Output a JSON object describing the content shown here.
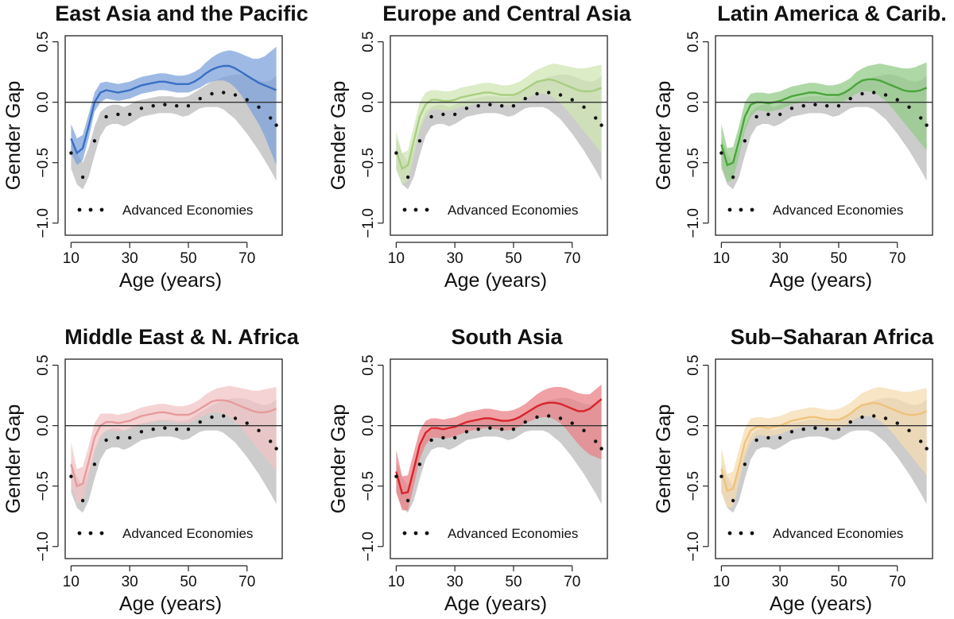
{
  "chart_data": {
    "type": "line",
    "xlabel": "Age (years)",
    "ylabel": "Gender Gap",
    "xlim": [
      8,
      82
    ],
    "ylim": [
      -1.1,
      0.55
    ],
    "xticks": [
      10,
      30,
      50,
      70
    ],
    "yticks": [
      -1.0,
      -0.5,
      0.0,
      0.5
    ],
    "xtick_labels": [
      "10",
      "30",
      "50",
      "70"
    ],
    "ytick_labels": [
      "−1.0",
      "−0.5",
      "0.0",
      "0.5"
    ],
    "reference_line_y": 0.0,
    "legend_label": "Advanced Economies",
    "legend_position": "bottom",
    "baseline": {
      "name": "Advanced Economies",
      "x": [
        10,
        12,
        14,
        16,
        18,
        20,
        22,
        24,
        26,
        28,
        30,
        32,
        34,
        36,
        38,
        40,
        42,
        44,
        46,
        48,
        50,
        52,
        54,
        56,
        58,
        60,
        62,
        64,
        66,
        68,
        70,
        72,
        74,
        76,
        78,
        80
      ],
      "y": [
        -0.42,
        -0.55,
        -0.62,
        -0.5,
        -0.32,
        -0.18,
        -0.12,
        -0.1,
        -0.1,
        -0.12,
        -0.1,
        -0.07,
        -0.05,
        -0.04,
        -0.03,
        -0.02,
        -0.02,
        -0.02,
        -0.03,
        -0.04,
        -0.03,
        0.0,
        0.03,
        0.05,
        0.07,
        0.08,
        0.08,
        0.07,
        0.06,
        0.04,
        0.02,
        -0.01,
        -0.04,
        -0.08,
        -0.13,
        -0.19
      ],
      "lower": [
        -0.55,
        -0.68,
        -0.72,
        -0.62,
        -0.44,
        -0.28,
        -0.2,
        -0.18,
        -0.18,
        -0.2,
        -0.18,
        -0.15,
        -0.12,
        -0.11,
        -0.1,
        -0.09,
        -0.09,
        -0.09,
        -0.1,
        -0.12,
        -0.11,
        -0.08,
        -0.05,
        -0.04,
        -0.04,
        -0.04,
        -0.06,
        -0.1,
        -0.14,
        -0.2,
        -0.26,
        -0.33,
        -0.4,
        -0.48,
        -0.56,
        -0.65
      ],
      "upper": [
        -0.3,
        -0.42,
        -0.5,
        -0.38,
        -0.2,
        -0.08,
        -0.04,
        -0.02,
        -0.02,
        -0.04,
        -0.02,
        0.01,
        0.02,
        0.03,
        0.04,
        0.05,
        0.05,
        0.05,
        0.04,
        0.04,
        0.05,
        0.08,
        0.11,
        0.14,
        0.17,
        0.19,
        0.21,
        0.22,
        0.23,
        0.23,
        0.22,
        0.2,
        0.18,
        0.17,
        0.18,
        0.22
      ]
    },
    "panels": [
      {
        "title": "East Asia and the Pacific",
        "color": "#3a6fc4",
        "band_color": "#7ea3db",
        "x": [
          10,
          12,
          14,
          16,
          18,
          20,
          22,
          24,
          26,
          28,
          30,
          32,
          34,
          36,
          38,
          40,
          42,
          44,
          46,
          48,
          50,
          52,
          54,
          56,
          58,
          60,
          62,
          64,
          66,
          68,
          70,
          72,
          74,
          76,
          78,
          80
        ],
        "y": [
          -0.3,
          -0.42,
          -0.38,
          -0.2,
          0.0,
          0.08,
          0.1,
          0.09,
          0.08,
          0.09,
          0.1,
          0.12,
          0.14,
          0.15,
          0.16,
          0.17,
          0.17,
          0.16,
          0.15,
          0.15,
          0.15,
          0.17,
          0.2,
          0.24,
          0.27,
          0.29,
          0.3,
          0.3,
          0.28,
          0.25,
          0.22,
          0.19,
          0.16,
          0.14,
          0.12,
          0.1
        ],
        "lower": [
          -0.42,
          -0.52,
          -0.48,
          -0.3,
          -0.08,
          0.0,
          0.03,
          0.02,
          0.01,
          0.02,
          0.03,
          0.05,
          0.07,
          0.08,
          0.09,
          0.1,
          0.1,
          0.09,
          0.08,
          0.08,
          0.08,
          0.1,
          0.12,
          0.15,
          0.17,
          0.18,
          0.18,
          0.16,
          0.12,
          0.06,
          -0.02,
          -0.1,
          -0.18,
          -0.28,
          -0.4,
          -0.52
        ],
        "upper": [
          -0.18,
          -0.3,
          -0.27,
          -0.1,
          0.08,
          0.16,
          0.17,
          0.16,
          0.15,
          0.16,
          0.17,
          0.19,
          0.21,
          0.22,
          0.23,
          0.24,
          0.24,
          0.23,
          0.22,
          0.22,
          0.23,
          0.25,
          0.28,
          0.33,
          0.37,
          0.4,
          0.42,
          0.43,
          0.42,
          0.4,
          0.38,
          0.36,
          0.36,
          0.38,
          0.42,
          0.46
        ]
      },
      {
        "title": "Europe and Central Asia",
        "color": "#a9cf7f",
        "band_color": "#cfe6b4",
        "x": [
          10,
          12,
          14,
          16,
          18,
          20,
          22,
          24,
          26,
          28,
          30,
          32,
          34,
          36,
          38,
          40,
          42,
          44,
          46,
          48,
          50,
          52,
          54,
          56,
          58,
          60,
          62,
          64,
          66,
          68,
          70,
          72,
          74,
          76,
          78,
          80
        ],
        "y": [
          -0.4,
          -0.55,
          -0.52,
          -0.32,
          -0.12,
          -0.02,
          0.02,
          0.02,
          0.01,
          0.01,
          0.02,
          0.04,
          0.05,
          0.06,
          0.07,
          0.08,
          0.08,
          0.07,
          0.06,
          0.06,
          0.06,
          0.08,
          0.11,
          0.14,
          0.17,
          0.18,
          0.19,
          0.18,
          0.16,
          0.14,
          0.12,
          0.1,
          0.09,
          0.09,
          0.1,
          0.12
        ],
        "lower": [
          -0.56,
          -0.68,
          -0.65,
          -0.45,
          -0.24,
          -0.12,
          -0.06,
          -0.06,
          -0.07,
          -0.07,
          -0.06,
          -0.04,
          -0.03,
          -0.02,
          -0.01,
          0.0,
          0.0,
          -0.01,
          -0.02,
          -0.02,
          -0.02,
          0.0,
          0.03,
          0.05,
          0.07,
          0.07,
          0.06,
          0.03,
          -0.01,
          -0.06,
          -0.12,
          -0.18,
          -0.24,
          -0.3,
          -0.36,
          -0.42
        ],
        "upper": [
          -0.24,
          -0.42,
          -0.4,
          -0.2,
          0.0,
          0.08,
          0.1,
          0.1,
          0.09,
          0.09,
          0.1,
          0.12,
          0.13,
          0.14,
          0.15,
          0.16,
          0.16,
          0.15,
          0.14,
          0.14,
          0.15,
          0.17,
          0.2,
          0.24,
          0.27,
          0.29,
          0.31,
          0.32,
          0.31,
          0.3,
          0.29,
          0.28,
          0.28,
          0.29,
          0.3,
          0.31
        ]
      },
      {
        "title": "Latin America & Carib.",
        "color": "#4aa53a",
        "band_color": "#93cb88",
        "x": [
          10,
          12,
          14,
          16,
          18,
          20,
          22,
          24,
          26,
          28,
          30,
          32,
          34,
          36,
          38,
          40,
          42,
          44,
          46,
          48,
          50,
          52,
          54,
          56,
          58,
          60,
          62,
          64,
          66,
          68,
          70,
          72,
          74,
          76,
          78,
          80
        ],
        "y": [
          -0.35,
          -0.52,
          -0.5,
          -0.32,
          -0.12,
          -0.02,
          0.0,
          0.0,
          -0.01,
          0.0,
          0.01,
          0.03,
          0.05,
          0.06,
          0.07,
          0.08,
          0.08,
          0.07,
          0.06,
          0.06,
          0.06,
          0.08,
          0.11,
          0.15,
          0.18,
          0.19,
          0.19,
          0.18,
          0.16,
          0.14,
          0.12,
          0.1,
          0.09,
          0.09,
          0.1,
          0.12
        ],
        "lower": [
          -0.52,
          -0.66,
          -0.64,
          -0.45,
          -0.24,
          -0.12,
          -0.07,
          -0.07,
          -0.08,
          -0.07,
          -0.06,
          -0.04,
          -0.02,
          -0.01,
          0.0,
          0.01,
          0.01,
          0.0,
          -0.01,
          -0.01,
          -0.01,
          0.01,
          0.04,
          0.07,
          0.09,
          0.09,
          0.08,
          0.05,
          0.01,
          -0.04,
          -0.1,
          -0.16,
          -0.22,
          -0.28,
          -0.34,
          -0.4
        ],
        "upper": [
          -0.18,
          -0.38,
          -0.37,
          -0.2,
          0.0,
          0.07,
          0.08,
          0.08,
          0.07,
          0.08,
          0.09,
          0.11,
          0.13,
          0.14,
          0.15,
          0.16,
          0.16,
          0.15,
          0.14,
          0.14,
          0.15,
          0.17,
          0.2,
          0.25,
          0.28,
          0.3,
          0.31,
          0.32,
          0.31,
          0.3,
          0.29,
          0.28,
          0.28,
          0.29,
          0.31,
          0.33
        ]
      },
      {
        "title": "Middle East & N. Africa",
        "color": "#e79a9c",
        "band_color": "#f1c4c5",
        "x": [
          10,
          12,
          14,
          16,
          18,
          20,
          22,
          24,
          26,
          28,
          30,
          32,
          34,
          36,
          38,
          40,
          42,
          44,
          46,
          48,
          50,
          52,
          54,
          56,
          58,
          60,
          62,
          64,
          66,
          68,
          70,
          72,
          74,
          76,
          78,
          80
        ],
        "y": [
          -0.32,
          -0.5,
          -0.48,
          -0.3,
          -0.1,
          0.0,
          0.03,
          0.03,
          0.02,
          0.03,
          0.04,
          0.06,
          0.08,
          0.09,
          0.1,
          0.11,
          0.11,
          0.1,
          0.09,
          0.09,
          0.09,
          0.11,
          0.14,
          0.17,
          0.2,
          0.21,
          0.21,
          0.2,
          0.18,
          0.16,
          0.14,
          0.12,
          0.11,
          0.11,
          0.12,
          0.14
        ],
        "lower": [
          -0.5,
          -0.64,
          -0.62,
          -0.43,
          -0.22,
          -0.1,
          -0.04,
          -0.04,
          -0.05,
          -0.04,
          -0.03,
          -0.01,
          0.01,
          0.02,
          0.03,
          0.04,
          0.04,
          0.03,
          0.02,
          0.02,
          0.02,
          0.04,
          0.07,
          0.09,
          0.11,
          0.11,
          0.1,
          0.07,
          0.03,
          -0.02,
          -0.08,
          -0.14,
          -0.2,
          -0.26,
          -0.32,
          -0.38
        ],
        "upper": [
          -0.14,
          -0.36,
          -0.34,
          -0.17,
          0.02,
          0.1,
          0.1,
          0.1,
          0.09,
          0.1,
          0.11,
          0.13,
          0.15,
          0.16,
          0.17,
          0.18,
          0.18,
          0.17,
          0.16,
          0.16,
          0.17,
          0.19,
          0.22,
          0.26,
          0.29,
          0.31,
          0.32,
          0.33,
          0.32,
          0.31,
          0.3,
          0.29,
          0.29,
          0.3,
          0.31,
          0.32
        ]
      },
      {
        "title": "South Asia",
        "color": "#d8242b",
        "band_color": "#ea8287",
        "x": [
          10,
          12,
          14,
          16,
          18,
          20,
          22,
          24,
          26,
          28,
          30,
          32,
          34,
          36,
          38,
          40,
          42,
          44,
          46,
          48,
          50,
          52,
          54,
          56,
          58,
          60,
          62,
          64,
          66,
          68,
          70,
          72,
          74,
          76,
          78,
          80
        ],
        "y": [
          -0.38,
          -0.56,
          -0.55,
          -0.36,
          -0.16,
          -0.06,
          -0.02,
          -0.02,
          -0.03,
          -0.02,
          -0.01,
          0.01,
          0.03,
          0.04,
          0.05,
          0.06,
          0.06,
          0.05,
          0.04,
          0.04,
          0.05,
          0.07,
          0.1,
          0.13,
          0.16,
          0.18,
          0.19,
          0.19,
          0.18,
          0.16,
          0.14,
          0.12,
          0.12,
          0.14,
          0.18,
          0.22
        ],
        "lower": [
          -0.55,
          -0.7,
          -0.7,
          -0.5,
          -0.28,
          -0.16,
          -0.1,
          -0.1,
          -0.11,
          -0.1,
          -0.09,
          -0.07,
          -0.05,
          -0.04,
          -0.03,
          -0.02,
          -0.02,
          -0.03,
          -0.04,
          -0.04,
          -0.03,
          -0.01,
          0.02,
          0.04,
          0.06,
          0.07,
          0.07,
          0.05,
          0.02,
          -0.03,
          -0.09,
          -0.15,
          -0.2,
          -0.24,
          -0.26,
          -0.28
        ],
        "upper": [
          -0.2,
          -0.42,
          -0.41,
          -0.22,
          -0.04,
          0.04,
          0.06,
          0.06,
          0.05,
          0.06,
          0.07,
          0.09,
          0.11,
          0.12,
          0.13,
          0.14,
          0.14,
          0.13,
          0.12,
          0.12,
          0.13,
          0.15,
          0.18,
          0.22,
          0.26,
          0.29,
          0.31,
          0.32,
          0.32,
          0.31,
          0.29,
          0.27,
          0.26,
          0.26,
          0.3,
          0.34
        ]
      },
      {
        "title": "Sub–Saharan Africa",
        "color": "#f0c27a",
        "band_color": "#f6dcb1",
        "x": [
          10,
          12,
          14,
          16,
          18,
          20,
          22,
          24,
          26,
          28,
          30,
          32,
          34,
          36,
          38,
          40,
          42,
          44,
          46,
          48,
          50,
          52,
          54,
          56,
          58,
          60,
          62,
          64,
          66,
          68,
          70,
          72,
          74,
          76,
          78,
          80
        ],
        "y": [
          -0.36,
          -0.54,
          -0.52,
          -0.34,
          -0.14,
          -0.04,
          -0.01,
          -0.01,
          -0.02,
          -0.01,
          0.0,
          0.02,
          0.04,
          0.05,
          0.06,
          0.07,
          0.07,
          0.06,
          0.05,
          0.05,
          0.05,
          0.07,
          0.1,
          0.14,
          0.17,
          0.18,
          0.19,
          0.18,
          0.16,
          0.14,
          0.12,
          0.1,
          0.09,
          0.09,
          0.1,
          0.12
        ],
        "lower": [
          -0.54,
          -0.68,
          -0.67,
          -0.47,
          -0.26,
          -0.14,
          -0.08,
          -0.08,
          -0.09,
          -0.08,
          -0.07,
          -0.05,
          -0.03,
          -0.02,
          -0.01,
          0.0,
          0.0,
          -0.01,
          -0.02,
          -0.02,
          -0.02,
          0.0,
          0.03,
          0.06,
          0.08,
          0.08,
          0.07,
          0.04,
          0.0,
          -0.05,
          -0.11,
          -0.17,
          -0.23,
          -0.29,
          -0.35,
          -0.41
        ],
        "upper": [
          -0.18,
          -0.4,
          -0.38,
          -0.2,
          -0.02,
          0.06,
          0.07,
          0.07,
          0.06,
          0.07,
          0.08,
          0.1,
          0.12,
          0.13,
          0.14,
          0.15,
          0.15,
          0.14,
          0.13,
          0.13,
          0.14,
          0.16,
          0.19,
          0.23,
          0.27,
          0.29,
          0.31,
          0.32,
          0.31,
          0.3,
          0.29,
          0.28,
          0.28,
          0.29,
          0.3,
          0.31
        ]
      }
    ]
  }
}
